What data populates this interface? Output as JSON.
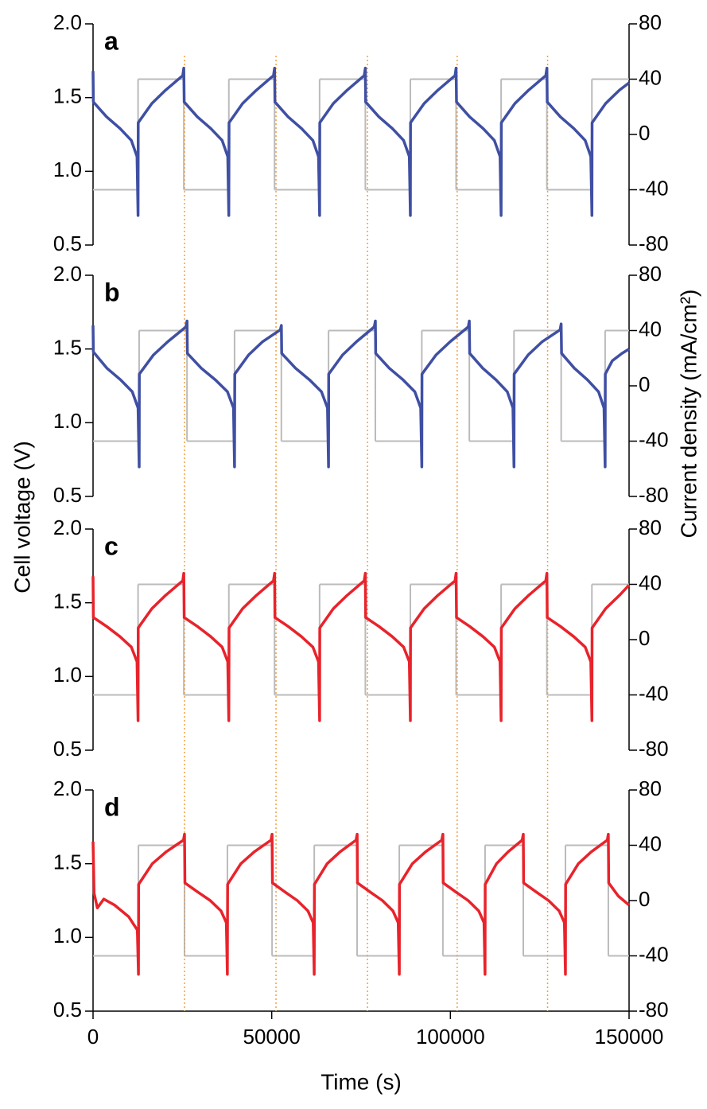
{
  "chart_data": [
    {
      "type": "line",
      "label": "a",
      "xlim": [
        0,
        150000
      ],
      "ylim": [
        0.5,
        2
      ],
      "yticks": [
        0.5,
        {
          "value": 1,
          "label": "1.0"
        },
        1.5,
        {
          "value": 2,
          "label": "2.0"
        }
      ],
      "y2lim": [
        -80,
        80
      ],
      "y2ticks": [
        -80,
        -40,
        0,
        40,
        80
      ],
      "series": [
        {
          "color": "#bbbbbb",
          "axis": "y2",
          "step": true,
          "x": [
            0,
            12600,
            25400,
            38000,
            50800,
            63400,
            76200,
            88800,
            101600,
            114200,
            127000,
            139600
          ],
          "values": [
            -40,
            40,
            -40,
            40,
            -40,
            40,
            -40,
            40,
            -40,
            40,
            -40,
            40
          ]
        },
        {
          "color": "#3f4fa3",
          "x": [
            0,
            100,
            3780,
            7560,
            10710,
            12300,
            12600,
            12650,
            16440,
            20280,
            25100,
            25400,
            25500,
            29180,
            32960,
            36110,
            37700,
            38000,
            38050,
            41840,
            45680,
            50500,
            50800,
            50900,
            54580,
            58360,
            61510,
            63100,
            63400,
            63450,
            67240,
            71080,
            75900,
            76200,
            76300,
            79980,
            83760,
            86910,
            88500,
            88800,
            88850,
            92640,
            96480,
            101300,
            101600,
            101700,
            105380,
            109160,
            112310,
            113900,
            114200,
            114250,
            118040,
            121880,
            126700,
            127000,
            127100,
            130780,
            134560,
            137710,
            139300,
            139600,
            139650,
            143440,
            147280,
            150000
          ],
          "values": [
            1.68,
            1.47,
            1.37,
            1.29,
            1.21,
            1.1,
            0.7,
            1.33,
            1.46,
            1.55,
            1.65,
            1.7,
            1.47,
            1.37,
            1.29,
            1.21,
            1.1,
            0.7,
            1.33,
            1.46,
            1.55,
            1.65,
            1.7,
            1.47,
            1.37,
            1.29,
            1.21,
            1.1,
            0.7,
            1.33,
            1.46,
            1.55,
            1.65,
            1.7,
            1.47,
            1.37,
            1.29,
            1.21,
            1.1,
            0.7,
            1.33,
            1.46,
            1.55,
            1.65,
            1.7,
            1.47,
            1.37,
            1.29,
            1.21,
            1.1,
            0.7,
            1.33,
            1.46,
            1.55,
            1.65,
            1.7,
            1.47,
            1.37,
            1.29,
            1.21,
            1.1,
            0.7,
            1.33,
            1.46,
            1.55,
            1.6
          ]
        }
      ]
    },
    {
      "type": "line",
      "label": "b",
      "xlim": [
        0,
        150000
      ],
      "ylim": [
        0.5,
        2
      ],
      "yticks": [
        0.5,
        {
          "value": 1,
          "label": "1.0"
        },
        1.5,
        {
          "value": 2,
          "label": "2.0"
        }
      ],
      "y2lim": [
        -80,
        80
      ],
      "y2ticks": [
        -80,
        -40,
        0,
        40,
        80
      ],
      "series": [
        {
          "color": "#bbbbbb",
          "axis": "y2",
          "step": true,
          "x": [
            0,
            12900,
            26300,
            39600,
            52700,
            65900,
            79000,
            92000,
            105300,
            117800,
            131000,
            143300
          ],
          "values": [
            -40,
            40,
            -40,
            40,
            -40,
            40,
            -40,
            40,
            -40,
            40,
            -40,
            40
          ]
        },
        {
          "color": "#3f4fa3",
          "x": [
            0,
            100,
            3870,
            7740,
            10965,
            12600,
            12900,
            12950,
            16920,
            20940,
            26000,
            26300,
            26400,
            30290,
            34280,
            37605,
            39300,
            39600,
            39650,
            43530,
            47460,
            52400,
            52700,
            52800,
            56660,
            60620,
            63920,
            65600,
            65900,
            65950,
            69830,
            73760,
            78700,
            79000,
            79100,
            82900,
            86800,
            90050,
            91700,
            92000,
            92050,
            95990,
            99980,
            105000,
            105300,
            105400,
            109050,
            112800,
            115925,
            117500,
            117800,
            117850,
            121760,
            125720,
            130700,
            131000,
            131100,
            134690,
            138380,
            141455,
            143000,
            143300,
            143350,
            145300,
            148000,
            150000
          ],
          "values": [
            1.66,
            1.48,
            1.37,
            1.29,
            1.21,
            1.1,
            0.7,
            1.33,
            1.46,
            1.55,
            1.65,
            1.69,
            1.47,
            1.37,
            1.29,
            1.21,
            1.1,
            0.7,
            1.33,
            1.46,
            1.55,
            1.63,
            1.66,
            1.47,
            1.37,
            1.29,
            1.21,
            1.1,
            0.7,
            1.33,
            1.46,
            1.55,
            1.65,
            1.69,
            1.47,
            1.37,
            1.29,
            1.21,
            1.1,
            0.7,
            1.33,
            1.46,
            1.55,
            1.65,
            1.69,
            1.47,
            1.37,
            1.29,
            1.21,
            1.1,
            0.7,
            1.33,
            1.46,
            1.55,
            1.63,
            1.67,
            1.47,
            1.37,
            1.29,
            1.21,
            1.1,
            0.7,
            1.33,
            1.42,
            1.47,
            1.5
          ]
        }
      ]
    },
    {
      "type": "line",
      "label": "c",
      "xlim": [
        0,
        150000
      ],
      "ylim": [
        0.5,
        2
      ],
      "yticks": [
        0.5,
        {
          "value": 1,
          "label": "1.0"
        },
        1.5,
        {
          "value": 2,
          "label": "2.0"
        }
      ],
      "y2lim": [
        -80,
        80
      ],
      "y2ticks": [
        -80,
        -40,
        0,
        40,
        80
      ],
      "series": [
        {
          "color": "#bbbbbb",
          "axis": "y2",
          "step": true,
          "x": [
            0,
            12600,
            25400,
            38000,
            50800,
            63400,
            76200,
            88800,
            101600,
            114200,
            127000,
            139600
          ],
          "values": [
            -40,
            40,
            -40,
            40,
            -40,
            40,
            -40,
            40,
            -40,
            40,
            -40,
            40
          ]
        },
        {
          "color": "#e8232b",
          "x": [
            0,
            100,
            3780,
            7560,
            10710,
            12300,
            12600,
            12650,
            16440,
            20280,
            25100,
            25400,
            25500,
            29180,
            32960,
            36110,
            37700,
            38000,
            38050,
            41840,
            45680,
            50500,
            50800,
            50900,
            54580,
            58360,
            61510,
            63100,
            63400,
            63450,
            67240,
            71080,
            75900,
            76200,
            76300,
            79980,
            83760,
            86910,
            88500,
            88800,
            88850,
            92640,
            96480,
            101300,
            101600,
            101700,
            105380,
            109160,
            112310,
            113900,
            114200,
            114250,
            118040,
            121880,
            126700,
            127000,
            127100,
            130780,
            134560,
            137710,
            139300,
            139600,
            139650,
            143440,
            147280,
            150000
          ],
          "values": [
            1.68,
            1.4,
            1.34,
            1.27,
            1.2,
            1.1,
            0.7,
            1.33,
            1.46,
            1.55,
            1.65,
            1.7,
            1.4,
            1.34,
            1.27,
            1.2,
            1.1,
            0.7,
            1.33,
            1.46,
            1.55,
            1.65,
            1.7,
            1.4,
            1.34,
            1.27,
            1.2,
            1.1,
            0.7,
            1.33,
            1.46,
            1.55,
            1.65,
            1.7,
            1.4,
            1.34,
            1.27,
            1.2,
            1.1,
            0.7,
            1.33,
            1.46,
            1.55,
            1.65,
            1.7,
            1.4,
            1.34,
            1.27,
            1.2,
            1.1,
            0.7,
            1.33,
            1.46,
            1.55,
            1.65,
            1.7,
            1.4,
            1.34,
            1.27,
            1.2,
            1.1,
            0.7,
            1.33,
            1.46,
            1.55,
            1.62
          ]
        }
      ]
    },
    {
      "type": "line",
      "label": "d",
      "xlim": [
        0,
        150000
      ],
      "xticks": [
        0,
        50000,
        100000,
        150000
      ],
      "ylim": [
        0.5,
        2
      ],
      "yticks": [
        0.5,
        {
          "value": 1,
          "label": "1.0"
        },
        1.5,
        {
          "value": 2,
          "label": "2.0"
        }
      ],
      "y2lim": [
        -80,
        80
      ],
      "y2ticks": [
        -80,
        -40,
        0,
        40,
        80
      ],
      "series": [
        {
          "color": "#bbbbbb",
          "axis": "y2",
          "step": true,
          "x": [
            0,
            12700,
            25600,
            37600,
            50100,
            61900,
            73900,
            85700,
            97900,
            109700,
            120400,
            132200,
            144200
          ],
          "values": [
            -40,
            40,
            -40,
            40,
            -40,
            40,
            -40,
            40,
            -40,
            40,
            -40,
            40,
            -40
          ]
        },
        {
          "color": "#e8232b",
          "x": [
            0,
            300,
            1200,
            3000,
            6000,
            10000,
            12400,
            12700,
            12750,
            16570,
            20440,
            25300,
            25600,
            25700,
            29200,
            32800,
            35800,
            37300,
            37600,
            37650,
            41350,
            45100,
            49800,
            50100,
            50200,
            53640,
            57180,
            60130,
            61600,
            61900,
            61950,
            65500,
            69100,
            73600,
            73900,
            74000,
            77440,
            80980,
            83930,
            85400,
            85700,
            85750,
            89360,
            93020,
            97600,
            97900,
            98000,
            101440,
            104980,
            107930,
            109400,
            109700,
            109750,
            112910,
            116120,
            120100,
            120400,
            120500,
            123940,
            127480,
            130430,
            131900,
            132200,
            132250,
            135800,
            139400,
            143900,
            144200,
            144300,
            147000,
            150000
          ],
          "values": [
            1.65,
            1.3,
            1.2,
            1.26,
            1.22,
            1.14,
            1.05,
            0.75,
            1.36,
            1.5,
            1.58,
            1.66,
            1.7,
            1.37,
            1.31,
            1.25,
            1.18,
            1.1,
            0.75,
            1.36,
            1.5,
            1.58,
            1.66,
            1.7,
            1.37,
            1.31,
            1.25,
            1.18,
            1.1,
            0.75,
            1.36,
            1.5,
            1.58,
            1.66,
            1.7,
            1.37,
            1.31,
            1.25,
            1.18,
            1.1,
            0.75,
            1.36,
            1.5,
            1.58,
            1.66,
            1.7,
            1.37,
            1.31,
            1.25,
            1.18,
            1.1,
            0.75,
            1.36,
            1.5,
            1.58,
            1.66,
            1.7,
            1.37,
            1.31,
            1.25,
            1.18,
            1.1,
            0.75,
            1.36,
            1.5,
            1.58,
            1.66,
            1.7,
            1.37,
            1.28,
            1.22
          ]
        }
      ]
    }
  ],
  "xlabel": "Time (s)",
  "ylabel": "Cell voltage (V)",
  "y2label": "Current density (mA/cm²)",
  "reference_lines": {
    "color": "#f0a040",
    "x": [
      25600,
      51200,
      76800,
      101900,
      127200
    ]
  }
}
